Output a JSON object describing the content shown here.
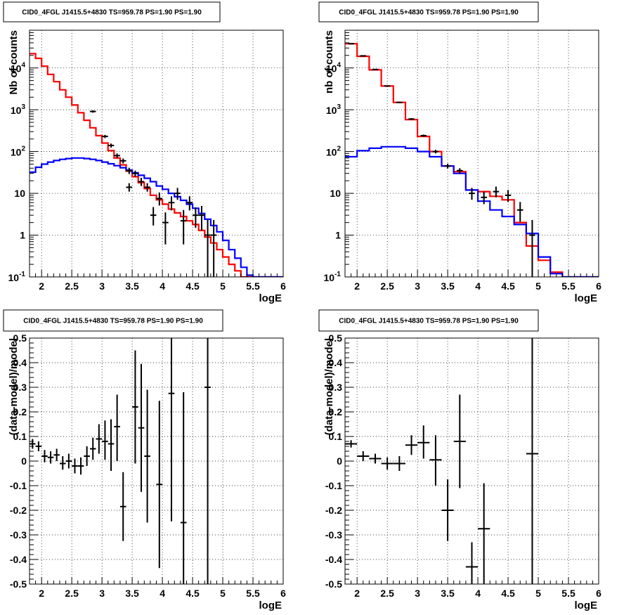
{
  "chart_data": [
    {
      "type": "line",
      "title": "CID0_4FGL J1415.5+4830 TS=959.78 PS=1.90 PS=1.90",
      "xlabel": "logE",
      "ylabel": "Nb of counts",
      "xlim": [
        1.8,
        6.0
      ],
      "ylim": [
        0.1,
        80000
      ],
      "yscale": "log",
      "grid": true,
      "x_ticks": [
        "2",
        "2.5",
        "3",
        "3.5",
        "4",
        "4.5",
        "5",
        "5.5",
        "6"
      ],
      "y_ticks": [
        "10^-1",
        "1",
        "10",
        "10^2",
        "10^3",
        "10^4"
      ],
      "bin_edges": [
        1.8,
        1.9,
        2.0,
        2.1,
        2.2,
        2.3,
        2.4,
        2.5,
        2.6,
        2.7,
        2.8,
        2.9,
        3.0,
        3.1,
        3.2,
        3.3,
        3.4,
        3.5,
        3.6,
        3.7,
        3.8,
        3.9,
        4.0,
        4.1,
        4.2,
        4.3,
        4.4,
        4.5,
        4.6,
        4.7,
        4.8,
        4.9,
        5.0,
        5.1,
        5.2,
        5.3,
        5.4,
        5.5,
        5.6,
        5.7,
        5.8,
        5.9,
        6.0
      ],
      "series": [
        {
          "color": "#ff0000",
          "values": [
            22000,
            17000,
            11000,
            7000,
            4700,
            3000,
            2000,
            1300,
            850,
            560,
            370,
            240,
            160,
            105,
            70,
            48,
            34,
            25,
            18,
            13,
            9,
            7,
            5.5,
            4.2,
            3.4,
            2.8,
            2.2,
            1.8,
            1.3,
            0.9,
            0.65,
            0.45,
            0.3,
            0.2,
            0.14,
            0.1,
            0.1,
            0.1,
            0.1,
            0.1,
            0.1,
            0.1
          ]
        },
        {
          "color": "#0000ff",
          "values": [
            32,
            42,
            50,
            56,
            61,
            65,
            68,
            70,
            70,
            68,
            65,
            61,
            56,
            51,
            46,
            41,
            36,
            31,
            27,
            23,
            19,
            15,
            12.5,
            10,
            8.3,
            6.8,
            5.5,
            4.4,
            3.3,
            2.4,
            1.7,
            1.2,
            0.75,
            0.45,
            0.28,
            0.17,
            0.11,
            0.1,
            0.1,
            0.1,
            0.1,
            0.1
          ]
        }
      ],
      "data_points": [
        {
          "x": 2.85,
          "y": 910,
          "lo": 850,
          "hi": 970
        },
        {
          "x": 3.05,
          "y": 230,
          "lo": 210,
          "hi": 250
        },
        {
          "x": 3.15,
          "y": 140,
          "lo": 125,
          "hi": 155
        },
        {
          "x": 3.25,
          "y": 80,
          "lo": 70,
          "hi": 90
        },
        {
          "x": 3.35,
          "y": 60,
          "lo": 52,
          "hi": 68
        },
        {
          "x": 3.45,
          "y": 35,
          "lo": 29,
          "hi": 41
        },
        {
          "x": 3.55,
          "y": 30,
          "lo": 25,
          "hi": 35
        },
        {
          "x": 3.45,
          "y": 14,
          "lo": 11,
          "hi": 17.5
        },
        {
          "x": 3.65,
          "y": 19,
          "lo": 15,
          "hi": 23.5
        },
        {
          "x": 3.75,
          "y": 14,
          "lo": 11,
          "hi": 17.5
        },
        {
          "x": 3.85,
          "y": 3,
          "lo": 1.7,
          "hi": 4.7
        },
        {
          "x": 3.95,
          "y": 7.5,
          "lo": 5.1,
          "hi": 10.5
        },
        {
          "x": 4.05,
          "y": 2,
          "lo": 0.6,
          "hi": 3.5
        },
        {
          "x": 4.15,
          "y": 6,
          "lo": 3.9,
          "hi": 8.5
        },
        {
          "x": 4.25,
          "y": 10,
          "lo": 7,
          "hi": 13.5
        },
        {
          "x": 4.35,
          "y": 2.2,
          "lo": 0.6,
          "hi": 4
        },
        {
          "x": 4.45,
          "y": 6,
          "lo": 3.9,
          "hi": 8.5
        },
        {
          "x": 4.55,
          "y": 3,
          "lo": 1.5,
          "hi": 4.6
        },
        {
          "x": 4.65,
          "y": 3,
          "lo": 1.3,
          "hi": 5
        },
        {
          "x": 4.75,
          "y": 1,
          "lo": 0.1,
          "hi": 2.3
        },
        {
          "x": 4.85,
          "y": 1,
          "lo": 0.1,
          "hi": 2.3
        }
      ]
    },
    {
      "type": "line",
      "title": "CID0_4FGL J1415.5+4830 TS=959.78 PS=1.90 PS=1.90",
      "xlabel": "logE",
      "ylabel": "nb of counts",
      "xlim": [
        1.8,
        6.0
      ],
      "ylim": [
        0.1,
        80000
      ],
      "yscale": "log",
      "grid": true,
      "x_ticks": [
        "2",
        "2.5",
        "3",
        "3.5",
        "4",
        "4.5",
        "5",
        "5.5",
        "6"
      ],
      "y_ticks": [
        "10^-1",
        "1",
        "10",
        "10^2",
        "10^3",
        "10^4"
      ],
      "bin_edges": [
        1.8,
        2.0,
        2.2,
        2.4,
        2.6,
        2.8,
        3.0,
        3.2,
        3.4,
        3.6,
        3.8,
        4.0,
        4.2,
        4.4,
        4.6,
        4.8,
        5.0,
        5.2,
        5.4,
        5.6,
        5.8,
        6.0
      ],
      "series": [
        {
          "color": "#ff0000",
          "values": [
            38000,
            19000,
            9000,
            3700,
            1500,
            580,
            230,
            100,
            45,
            33,
            12,
            11,
            8.5,
            7,
            2,
            0.55,
            0.25,
            0.13,
            0.1,
            0.1,
            0.1
          ]
        },
        {
          "color": "#0000ff",
          "values": [
            75,
            105,
            120,
            130,
            130,
            120,
            100,
            75,
            45,
            30,
            12,
            6.5,
            4,
            2.8,
            1.8,
            1.1,
            0.3,
            0.12,
            0.1,
            0.1,
            0.1
          ]
        }
      ],
      "data_points": [
        {
          "x": 1.9,
          "y": 38000,
          "lo": 37500,
          "hi": 38500
        },
        {
          "x": 2.1,
          "y": 19500,
          "lo": 19200,
          "hi": 19800
        },
        {
          "x": 2.3,
          "y": 9200,
          "lo": 9000,
          "hi": 9400
        },
        {
          "x": 2.5,
          "y": 3700,
          "lo": 3600,
          "hi": 3800
        },
        {
          "x": 2.7,
          "y": 1500,
          "lo": 1450,
          "hi": 1550
        },
        {
          "x": 2.9,
          "y": 600,
          "lo": 570,
          "hi": 630
        },
        {
          "x": 3.1,
          "y": 240,
          "lo": 225,
          "hi": 255
        },
        {
          "x": 3.3,
          "y": 100,
          "lo": 90,
          "hi": 110
        },
        {
          "x": 3.5,
          "y": 45,
          "lo": 39,
          "hi": 51
        },
        {
          "x": 3.7,
          "y": 35,
          "lo": 30,
          "hi": 40
        },
        {
          "x": 3.9,
          "y": 10,
          "lo": 7,
          "hi": 13.5
        },
        {
          "x": 4.1,
          "y": 8,
          "lo": 5.5,
          "hi": 11
        },
        {
          "x": 4.3,
          "y": 11,
          "lo": 8,
          "hi": 14.5
        },
        {
          "x": 4.5,
          "y": 9,
          "lo": 6.3,
          "hi": 12
        },
        {
          "x": 4.7,
          "y": 4,
          "lo": 2.1,
          "hi": 6.2
        },
        {
          "x": 4.9,
          "y": 1,
          "lo": 0.1,
          "hi": 2.3
        }
      ]
    },
    {
      "type": "scatter",
      "title": "CID0_4FGL J1415.5+4830 TS=959.78 PS=1.90 PS=1.90",
      "xlabel": "logE",
      "ylabel": "(data-model)/model",
      "xlim": [
        1.8,
        6.0
      ],
      "ylim": [
        -0.5,
        0.5
      ],
      "grid": true,
      "x_ticks": [
        "2",
        "2.5",
        "3",
        "3.5",
        "4",
        "4.5",
        "5",
        "5.5",
        "6"
      ],
      "y_ticks": [
        "-0.5",
        "-0.4",
        "-0.3",
        "-0.2",
        "-0.1",
        "0",
        "0.1",
        "0.2",
        "0.3",
        "0.4",
        "0.5"
      ],
      "xerr": 0.05,
      "points": [
        {
          "x": 1.85,
          "y": 0.07,
          "lo": 0.05,
          "hi": 0.09
        },
        {
          "x": 1.95,
          "y": 0.06,
          "lo": 0.04,
          "hi": 0.08
        },
        {
          "x": 2.05,
          "y": 0.02,
          "lo": -0.005,
          "hi": 0.045
        },
        {
          "x": 2.15,
          "y": 0.015,
          "lo": -0.01,
          "hi": 0.04
        },
        {
          "x": 2.25,
          "y": 0.025,
          "lo": 0.0,
          "hi": 0.05
        },
        {
          "x": 2.35,
          "y": -0.01,
          "lo": -0.035,
          "hi": 0.02
        },
        {
          "x": 2.45,
          "y": 0.0,
          "lo": -0.03,
          "hi": 0.03
        },
        {
          "x": 2.55,
          "y": -0.02,
          "lo": -0.05,
          "hi": 0.01
        },
        {
          "x": 2.65,
          "y": -0.02,
          "lo": -0.055,
          "hi": 0.015
        },
        {
          "x": 2.75,
          "y": 0.02,
          "lo": -0.02,
          "hi": 0.06
        },
        {
          "x": 2.85,
          "y": 0.05,
          "lo": 0.005,
          "hi": 0.095
        },
        {
          "x": 2.95,
          "y": 0.09,
          "lo": 0.03,
          "hi": 0.15
        },
        {
          "x": 3.05,
          "y": 0.08,
          "lo": 0.005,
          "hi": 0.165
        },
        {
          "x": 3.15,
          "y": 0.07,
          "lo": -0.04,
          "hi": 0.17
        },
        {
          "x": 3.25,
          "y": 0.14,
          "lo": 0.0,
          "hi": 0.27
        },
        {
          "x": 3.35,
          "y": -0.185,
          "lo": -0.325,
          "hi": -0.045
        },
        {
          "x": 3.55,
          "y": 0.22,
          "lo": -0.01,
          "hi": 0.45
        },
        {
          "x": 3.65,
          "y": 0.135,
          "lo": -0.125,
          "hi": 0.395
        },
        {
          "x": 3.75,
          "y": 0.02,
          "lo": -0.25,
          "hi": 0.29
        },
        {
          "x": 3.95,
          "y": -0.095,
          "lo": -0.435,
          "hi": 0.245
        },
        {
          "x": 4.15,
          "y": 0.275,
          "lo": -0.245,
          "hi": 0.5
        },
        {
          "x": 4.35,
          "y": -0.25,
          "lo": -0.5,
          "hi": 0.28
        },
        {
          "x": 4.75,
          "y": 0.3,
          "lo": -0.5,
          "hi": 0.5
        }
      ]
    },
    {
      "type": "scatter",
      "title": "CID0_4FGL J1415.5+4830 TS=959.78 PS=1.90 PS=1.90",
      "xlabel": "logE",
      "ylabel": "(data-model)/model",
      "xlim": [
        1.8,
        6.0
      ],
      "ylim": [
        -0.5,
        0.5
      ],
      "grid": true,
      "x_ticks": [
        "2",
        "2.5",
        "3",
        "3.5",
        "4",
        "4.5",
        "5",
        "5.5",
        "6"
      ],
      "y_ticks": [
        "-0.5",
        "-0.4",
        "-0.3",
        "-0.2",
        "-0.1",
        "0",
        "0.1",
        "0.2",
        "0.3",
        "0.4",
        "0.5"
      ],
      "xerr": 0.1,
      "points": [
        {
          "x": 1.9,
          "y": 0.07,
          "lo": 0.055,
          "hi": 0.085
        },
        {
          "x": 2.1,
          "y": 0.02,
          "lo": 0.0,
          "hi": 0.04
        },
        {
          "x": 2.3,
          "y": 0.01,
          "lo": -0.01,
          "hi": 0.03
        },
        {
          "x": 2.5,
          "y": -0.01,
          "lo": -0.035,
          "hi": 0.015
        },
        {
          "x": 2.7,
          "y": -0.01,
          "lo": -0.04,
          "hi": 0.02
        },
        {
          "x": 2.9,
          "y": 0.065,
          "lo": 0.025,
          "hi": 0.105
        },
        {
          "x": 3.1,
          "y": 0.075,
          "lo": 0.01,
          "hi": 0.145
        },
        {
          "x": 3.3,
          "y": 0.005,
          "lo": -0.1,
          "hi": 0.105
        },
        {
          "x": 3.5,
          "y": -0.2,
          "lo": -0.325,
          "hi": -0.075
        },
        {
          "x": 3.7,
          "y": 0.08,
          "lo": -0.11,
          "hi": 0.27
        },
        {
          "x": 3.9,
          "y": -0.43,
          "lo": -0.5,
          "hi": -0.33
        },
        {
          "x": 4.1,
          "y": -0.275,
          "lo": -0.5,
          "hi": -0.09
        },
        {
          "x": 4.9,
          "y": 0.03,
          "lo": -0.5,
          "hi": 0.5
        }
      ]
    }
  ]
}
